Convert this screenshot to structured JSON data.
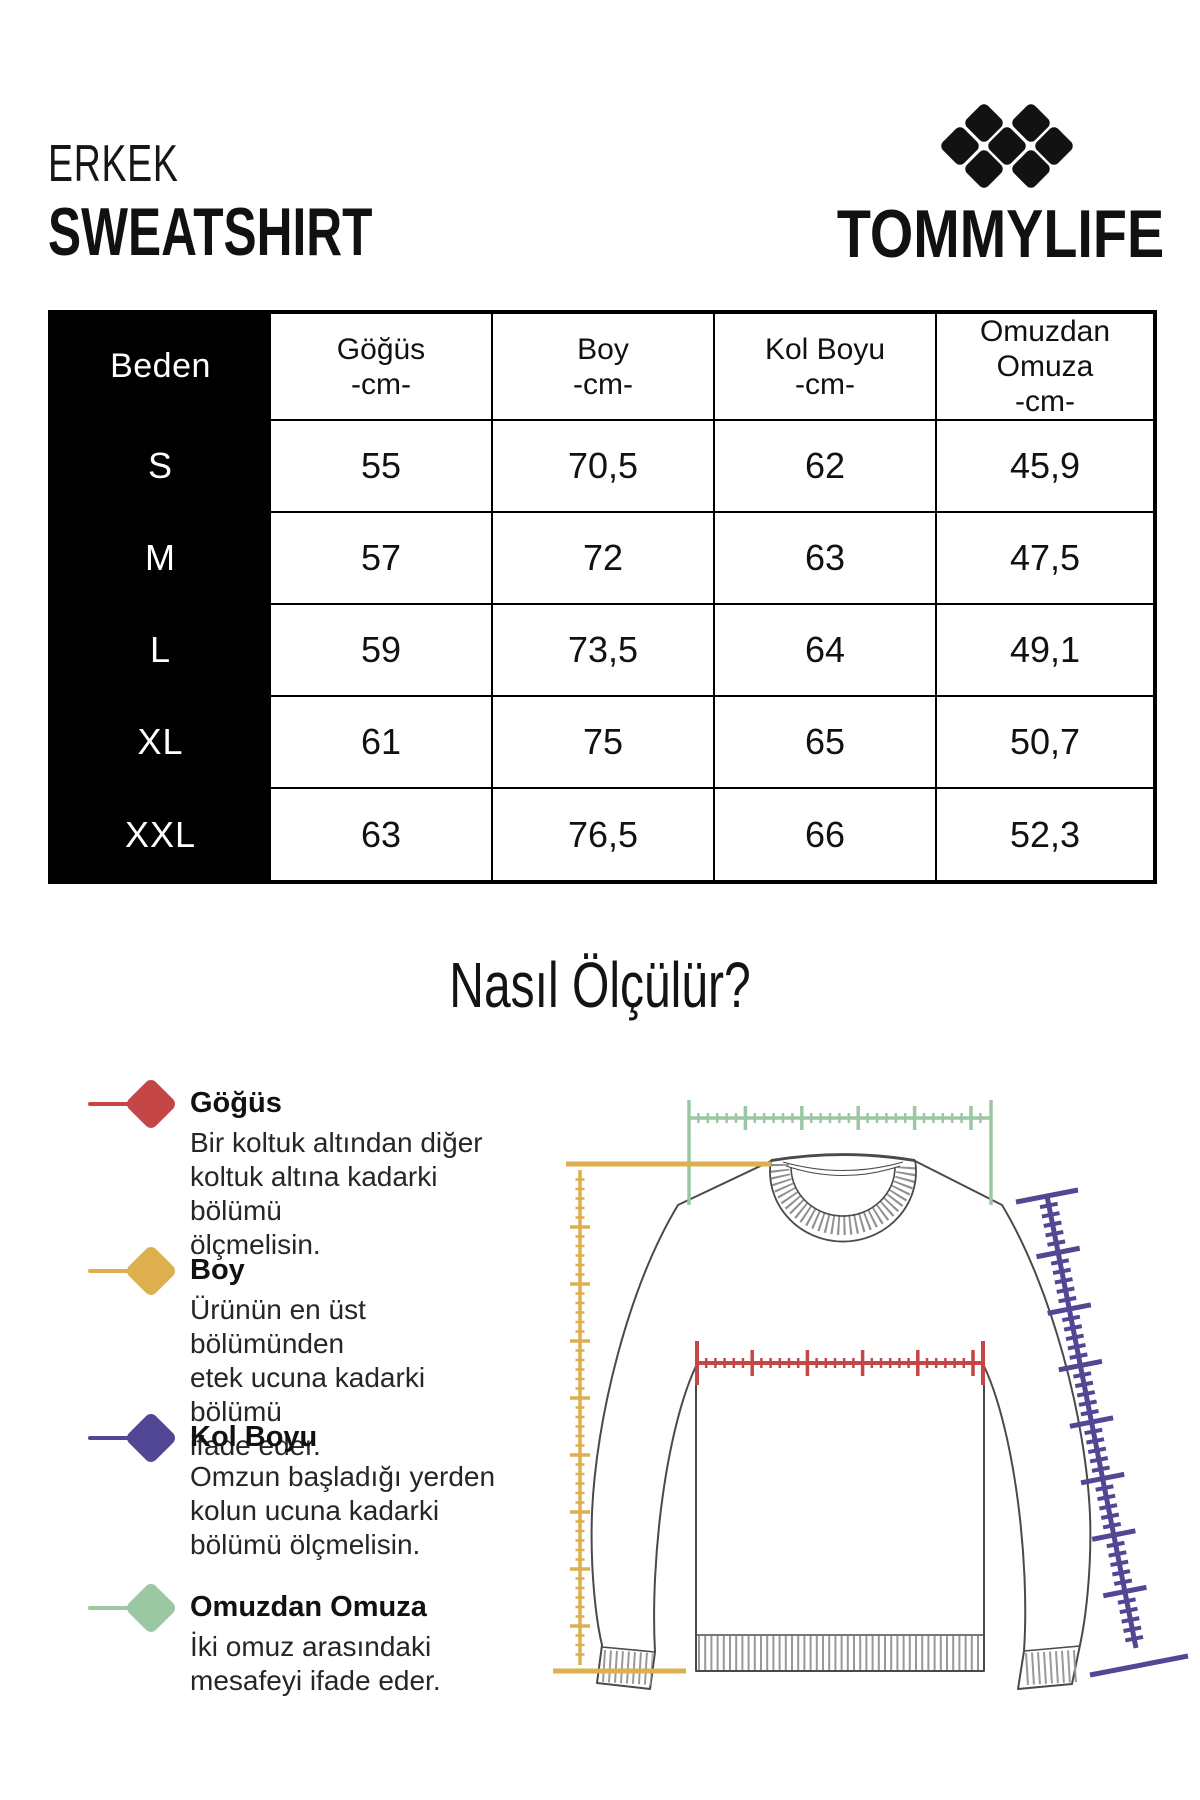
{
  "header": {
    "category": "ERKEK",
    "product_type": "SWEATSHIRT",
    "brand": "TOMMYLIFE",
    "logo_icon": "seven-diamond-lattice"
  },
  "size_table": {
    "corner_label": "Beden",
    "columns": [
      {
        "label": "Göğüs",
        "unit": "-cm-"
      },
      {
        "label": "Boy",
        "unit": "-cm-"
      },
      {
        "label": "Kol Boyu",
        "unit": "-cm-"
      },
      {
        "label": "Omuzdan Omuza",
        "unit": "-cm-"
      }
    ],
    "rows": [
      {
        "size": "S",
        "values": [
          "55",
          "70,5",
          "62",
          "45,9"
        ]
      },
      {
        "size": "M",
        "values": [
          "57",
          "72",
          "63",
          "47,5"
        ]
      },
      {
        "size": "L",
        "values": [
          "59",
          "73,5",
          "64",
          "49,1"
        ]
      },
      {
        "size": "XL",
        "values": [
          "61",
          "75",
          "65",
          "50,7"
        ]
      },
      {
        "size": "XXL",
        "values": [
          "63",
          "76,5",
          "66",
          "52,3"
        ]
      }
    ]
  },
  "how_to_measure": {
    "title": "Nasıl Ölçülür?",
    "legend": [
      {
        "label": "Göğüs",
        "color": "#C54646",
        "lines": [
          "Bir koltuk altından diğer",
          "koltuk altına kadarki bölümü",
          "ölçmelisin."
        ]
      },
      {
        "label": "Boy",
        "color": "#DDAF4E",
        "lines": [
          "Ürünün en üst bölümünden",
          "etek ucuna kadarki bölümü",
          "ifade eder."
        ]
      },
      {
        "label": "Kol Boyu",
        "color": "#514795",
        "lines": [
          "Omzun başladığı yerden",
          "kolun ucuna kadarki",
          "bölümü ölçmelisin."
        ]
      },
      {
        "label": "Omuzdan Omuza",
        "color": "#9CC7A3",
        "lines": [
          "İki omuz arasındaki",
          "mesafeyi ifade eder."
        ]
      }
    ]
  },
  "colors": {
    "chest_ruler": "#C54646",
    "length_ruler": "#DDAF4E",
    "sleeve_ruler": "#514795",
    "shoulder_ruler": "#9CC7A3",
    "table_header_bg": "#000000",
    "garment_outline": "#4a4a4a"
  }
}
